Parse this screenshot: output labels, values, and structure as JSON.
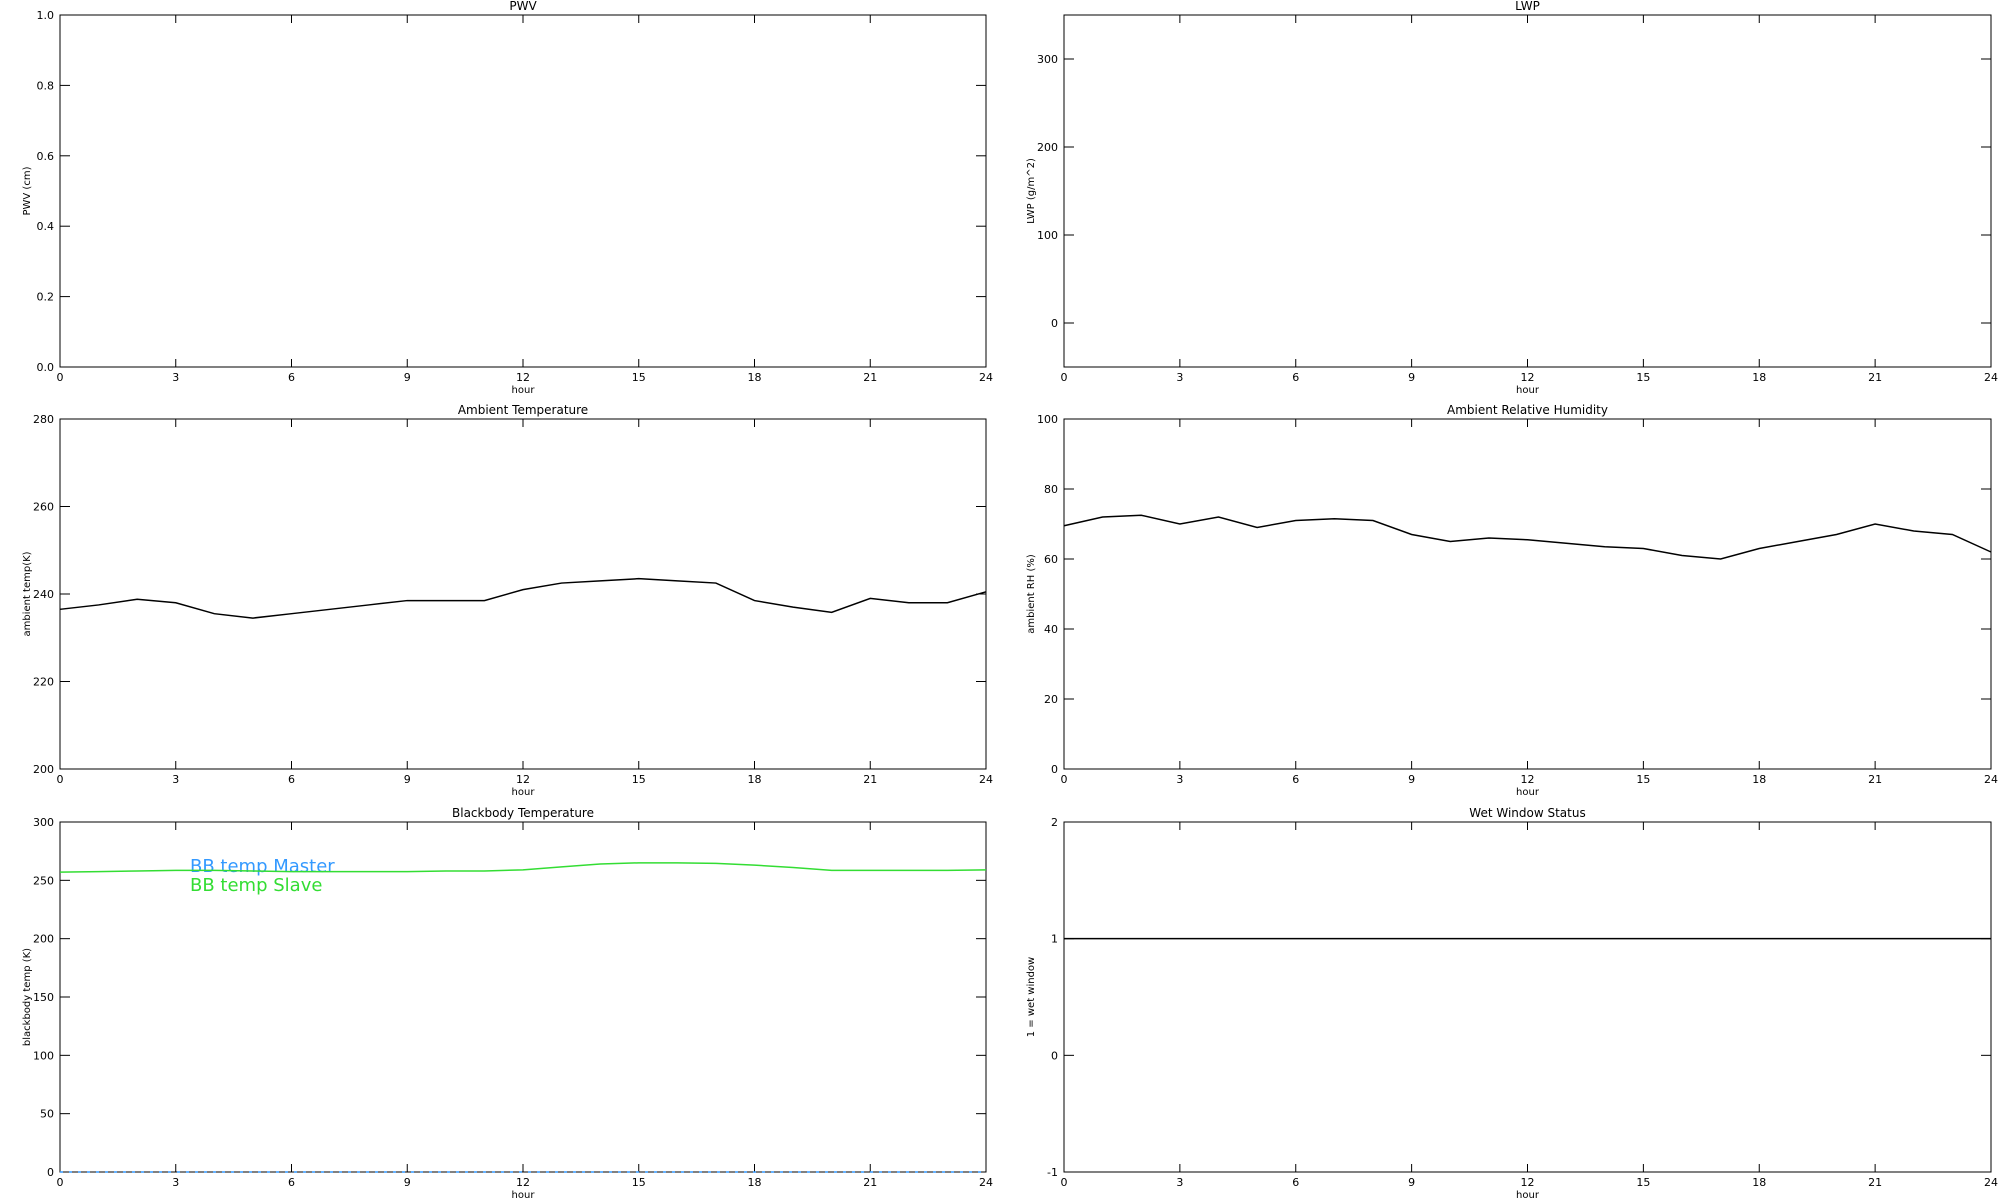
{
  "chart_data": [
    {
      "type": "line",
      "title": "PWV",
      "xlabel": "hour",
      "ylabel": "PWV (cm)",
      "xlim": [
        0,
        24
      ],
      "xticks": [
        0,
        3,
        6,
        9,
        12,
        15,
        18,
        21,
        24
      ],
      "ylim": [
        0,
        1
      ],
      "yticks": [
        {
          "value": 0,
          "label": "0.0"
        },
        0.2,
        0.4,
        0.6,
        0.8,
        {
          "value": 1,
          "label": "1.0"
        }
      ],
      "series": []
    },
    {
      "type": "line",
      "title": "LWP",
      "xlabel": "hour",
      "ylabel": "LWP (g/m^2)",
      "xlim": [
        0,
        24
      ],
      "xticks": [
        0,
        3,
        6,
        9,
        12,
        15,
        18,
        21,
        24
      ],
      "ylim": [
        -50,
        350
      ],
      "yticks": [
        0,
        100,
        200,
        300
      ],
      "series": []
    },
    {
      "type": "line",
      "title": "Ambient Temperature",
      "xlabel": "hour",
      "ylabel": "ambient temp(K)",
      "xlim": [
        0,
        24
      ],
      "xticks": [
        0,
        3,
        6,
        9,
        12,
        15,
        18,
        21,
        24
      ],
      "ylim": [
        200,
        280
      ],
      "yticks": [
        200,
        220,
        240,
        260,
        280
      ],
      "x": [
        0,
        1,
        2,
        3,
        4,
        5,
        6,
        7,
        8,
        9,
        10,
        11,
        12,
        13,
        14,
        15,
        16,
        17,
        18,
        19,
        20,
        21,
        22,
        23,
        24
      ],
      "series": [
        {
          "name": "ambient temp",
          "color": "#000000",
          "values": [
            236.5,
            237.5,
            238.8,
            238,
            235.5,
            234.5,
            235.5,
            236.5,
            237.5,
            238.5,
            238.5,
            238.5,
            241,
            242.5,
            243,
            243.5,
            243,
            242.5,
            238.5,
            237,
            235.8,
            239,
            238,
            238,
            240.5
          ]
        }
      ]
    },
    {
      "type": "line",
      "title": "Ambient Relative Humidity",
      "xlabel": "hour",
      "ylabel": "ambient RH (%)",
      "xlim": [
        0,
        24
      ],
      "xticks": [
        0,
        3,
        6,
        9,
        12,
        15,
        18,
        21,
        24
      ],
      "ylim": [
        0,
        100
      ],
      "yticks": [
        0,
        20,
        40,
        60,
        80,
        100
      ],
      "x": [
        0,
        1,
        2,
        3,
        4,
        5,
        6,
        7,
        8,
        9,
        10,
        11,
        12,
        13,
        14,
        15,
        16,
        17,
        18,
        19,
        20,
        21,
        22,
        23,
        24
      ],
      "series": [
        {
          "name": "ambient RH",
          "color": "#000000",
          "values": [
            69.5,
            72,
            72.5,
            70,
            72,
            69,
            71,
            71.5,
            71,
            67,
            65,
            66,
            65.5,
            64.5,
            63.5,
            63,
            61,
            60,
            63,
            65,
            67,
            70,
            68,
            67,
            62
          ]
        }
      ]
    },
    {
      "type": "line",
      "title": "Blackbody Temperature",
      "xlabel": "hour",
      "ylabel": "blackbody temp (K)",
      "xlim": [
        0,
        24
      ],
      "xticks": [
        0,
        3,
        6,
        9,
        12,
        15,
        18,
        21,
        24
      ],
      "ylim": [
        0,
        300
      ],
      "yticks": [
        0,
        50,
        100,
        150,
        200,
        250,
        300
      ],
      "legend": true,
      "x": [
        0,
        1,
        2,
        3,
        4,
        5,
        6,
        7,
        8,
        9,
        10,
        11,
        12,
        13,
        14,
        15,
        16,
        17,
        18,
        19,
        20,
        21,
        22,
        23,
        24
      ],
      "series": [
        {
          "name": "BB temp Master",
          "color": "#3399ff",
          "values": [
            0,
            0,
            0,
            0,
            0,
            0,
            0,
            0,
            0,
            0,
            0,
            0,
            0,
            0,
            0,
            0,
            0,
            0,
            0,
            0,
            0,
            0,
            0,
            0,
            0
          ]
        },
        {
          "name": "BB temp Slave",
          "color": "#33dd33",
          "values": [
            257,
            257.5,
            258,
            258.5,
            258.5,
            258,
            257.5,
            257.5,
            257.5,
            257.5,
            258,
            258,
            259,
            261.5,
            264,
            265,
            265,
            264.5,
            263,
            261,
            258.5,
            258.5,
            258.5,
            258.5,
            259
          ]
        }
      ]
    },
    {
      "type": "line",
      "title": "Wet Window Status",
      "xlabel": "hour",
      "ylabel": "1 = wet window",
      "xlim": [
        0,
        24
      ],
      "xticks": [
        0,
        3,
        6,
        9,
        12,
        15,
        18,
        21,
        24
      ],
      "ylim": [
        -1,
        2
      ],
      "yticks": [
        -1,
        0,
        1,
        2
      ],
      "x": [
        0,
        24
      ],
      "series": [
        {
          "name": "wet window",
          "color": "#000000",
          "values": [
            1,
            1
          ]
        }
      ]
    }
  ]
}
